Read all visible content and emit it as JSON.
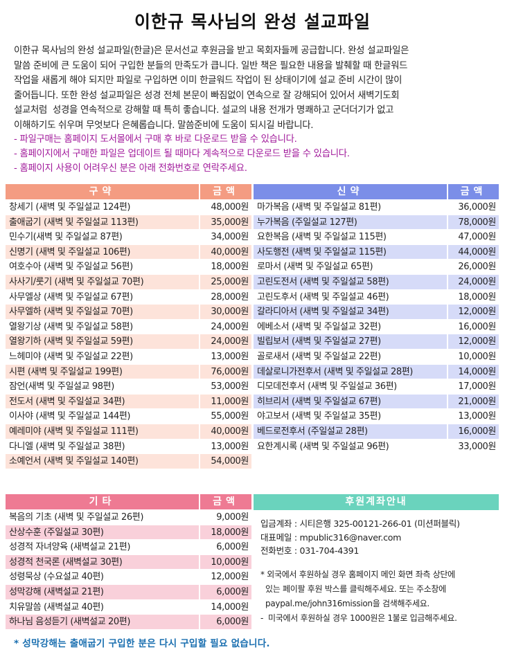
{
  "title": "이한규 목사님의 완성 설교파일",
  "intro": [
    "이한규 목사님의 완성 설교파일(한글)은 문서선교 후원금을 받고 목회자들께 공급합니다. 완성 설교파일은",
    "말씀 준비에 큰 도움이 되어 구입한 분들의 만족도가 큽니다. 일반 책은 필요한 내용을 발췌할 때 한글워드",
    "작업을 새롭게 해야 되지만 파일로 구입하면 이미 한글워드 작업이 된 상태이기에 설교 준비 시간이 많이",
    "줄어듭니다. 또한 완성 설교파일은 성경 전체 본문이 빠짐없이 연속으로 잘 강해되어 있어서 새벽기도회",
    "설교처럼  성경을 연속적으로 강해할 때 특히 좋습니다. 설교의 내용 전개가 명쾌하고 군더더기가 없고",
    "이해하기도 쉬우며 무엇보다 은혜롭습니다. 말씀준비에 도움이 되시길 바랍니다."
  ],
  "notes": [
    "- 파일구매는 홈페이지 도서몰에서 구매 후 바로 다운로드 받을 수 있습니다.",
    "- 홈페이지에서 구매한 파일은 업데이트 될 때마다 계속적으로 다운로드 받을 수 있습니다.",
    "- 홈페이지 사용이 어려우신 분은 아래 전화번호로 연락주세요."
  ],
  "colors": {
    "ot_header": "#f49c82",
    "ot_stripe": "#fde3da",
    "nt_header": "#7b8ee8",
    "nt_stripe": "#d6dbf8",
    "etc_header": "#ee7a93",
    "etc_stripe": "#f9d0da",
    "account_header": "#6ad3bd",
    "notes": "#a0189a",
    "footer": "#1a6fb0"
  },
  "old_testament": {
    "header": "구약",
    "price_header": "금액",
    "rows": [
      {
        "name": "창세기 (새벽 및 주일설교 124편)",
        "price": "48,000원"
      },
      {
        "name": "출애굽기 (새벽 및 주일설교 113편)",
        "price": "35,000원"
      },
      {
        "name": "민수기(새벽 및 주일설교 87편)",
        "price": "34,000원"
      },
      {
        "name": "신명기 (새벽 및 주일설교 106편)",
        "price": "40,000원"
      },
      {
        "name": "여호수아 (새벽 및 주일설교 56편)",
        "price": "18,000원"
      },
      {
        "name": "사사기/룻기 (새벽 및 주일설교 70편)",
        "price": "25,000원"
      },
      {
        "name": "사무엘상 (새벽 및  주일설교 67편)",
        "price": "28,000원"
      },
      {
        "name": "사무엘하 (새벽 및 주일설교 70편)",
        "price": "30,000원"
      },
      {
        "name": "열왕기상 (새벽 및 주일설교 58편)",
        "price": "24,000원"
      },
      {
        "name": "열왕기하 (새벽 및 주일설교 59편)",
        "price": "24,000원"
      },
      {
        "name": "느헤미야 (새벽 및 주일설교 22편)",
        "price": "13,000원"
      },
      {
        "name": "시편 (새벽 및 주일설교 199편)",
        "price": "76,000원"
      },
      {
        "name": "잠언(새벽 및 주일설교 98편)",
        "price": "53,000원"
      },
      {
        "name": "전도서 (새벽 및 주일설교 34편)",
        "price": "11,000원"
      },
      {
        "name": "이사야 (새벽 및 주일설교 144편)",
        "price": "55,000원"
      },
      {
        "name": "예레미야 (새벽 및 주일설교 111편)",
        "price": "40,000원"
      },
      {
        "name": "다니엘 (새벽 및 주일설교 38편)",
        "price": "13,000원"
      },
      {
        "name": "소예언서 (새벽 및 주일설교 140편)",
        "price": "54,000원"
      }
    ]
  },
  "new_testament": {
    "header": "신약",
    "price_header": "금액",
    "rows": [
      {
        "name": "마가복음 (새벽 및 주일설교 81편)",
        "price": "36,000원"
      },
      {
        "name": "누가복음 (주일설교 127편)",
        "price": "78,000원"
      },
      {
        "name": "요한복음 (새벽 및 주일설교 115편)",
        "price": "47,000원"
      },
      {
        "name": "사도행전 (새벽 및 주일설교 115편)",
        "price": "44,000원"
      },
      {
        "name": "로마서 (새벽 및 주일설교 65편)",
        "price": "26,000원"
      },
      {
        "name": "고린도전서 (새벽 및 주일설교 58편)",
        "price": "24,000원"
      },
      {
        "name": "고린도후서 (새벽 및 주일설교 46편)",
        "price": "18,000원"
      },
      {
        "name": "갈라디아서 (새벽 및 주일설교 34편)",
        "price": "12,000원"
      },
      {
        "name": "에베소서 (새벽 및 주일설교 32편)",
        "price": "16,000원"
      },
      {
        "name": "빌립보서 (새벽 및 주일설교 27편)",
        "price": "12,000원"
      },
      {
        "name": "골로새서 (새벽 및 주일설교 22편)",
        "price": "10,000원"
      },
      {
        "name": "데살로니가전후서 (새벽 및 주일설교 28편)",
        "price": "14,000원"
      },
      {
        "name": "디모데전후서 (새벽 및 주일설교 36편)",
        "price": "17,000원"
      },
      {
        "name": "히브리서 (새벽 및 주일설교 67편)",
        "price": "21,000원"
      },
      {
        "name": "야고보서 (새벽 및 주일설교 35편)",
        "price": "13,000원"
      },
      {
        "name": "베드로전후서 (주일설교 28편)",
        "price": "16,000원"
      },
      {
        "name": "요한계시록 (새벽 및 주일설교 96편)",
        "price": "33,000원"
      }
    ]
  },
  "etc": {
    "header": "기타",
    "price_header": "금액",
    "rows": [
      {
        "name": "복음의 기초 (새벽 및 주일설교 26편)",
        "price": "9,000원"
      },
      {
        "name": "산상수훈 (주일설교 30편)",
        "price": "18,000원"
      },
      {
        "name": "성경적 자녀양육 (새벽설교 21편)",
        "price": "6,000원"
      },
      {
        "name": "성경적 천국론 (새벽설교 30편)",
        "price": "10,000원"
      },
      {
        "name": "성령묵상 (수요설교 40편)",
        "price": "12,000원"
      },
      {
        "name": "성막강해 (새벽설교 21편)",
        "price": "6,000원"
      },
      {
        "name": "치유말씀 (새벽설교 40편)",
        "price": "14,000원"
      },
      {
        "name": "하나님 음성듣기 (새벽설교 20편)",
        "price": "6,000원"
      }
    ]
  },
  "account": {
    "header": "후원계좌안내",
    "info": [
      "입금계좌 : 시티은행 325-00121-266-01 (미션퍼블릭)",
      "대표메일 : mpublic316@naver.com",
      "전화번호 : 031-704-4391"
    ],
    "overseas": [
      "* 외국에서 후원하실 경우 홈페이지 메인 화면 좌측 상단에",
      "  있는 페이팔 후원 박스를 클릭해주세요. 또는 주소창에",
      "  paypal.me/john316mission을 검색해주세요.",
      "-  미국에서 후원하실 경우 1000원은 1불로 입금해주세요."
    ]
  },
  "footer_note": "* 성막강해는 출애굽기 구입한 분은 다시 구입할 필요 없습니다."
}
